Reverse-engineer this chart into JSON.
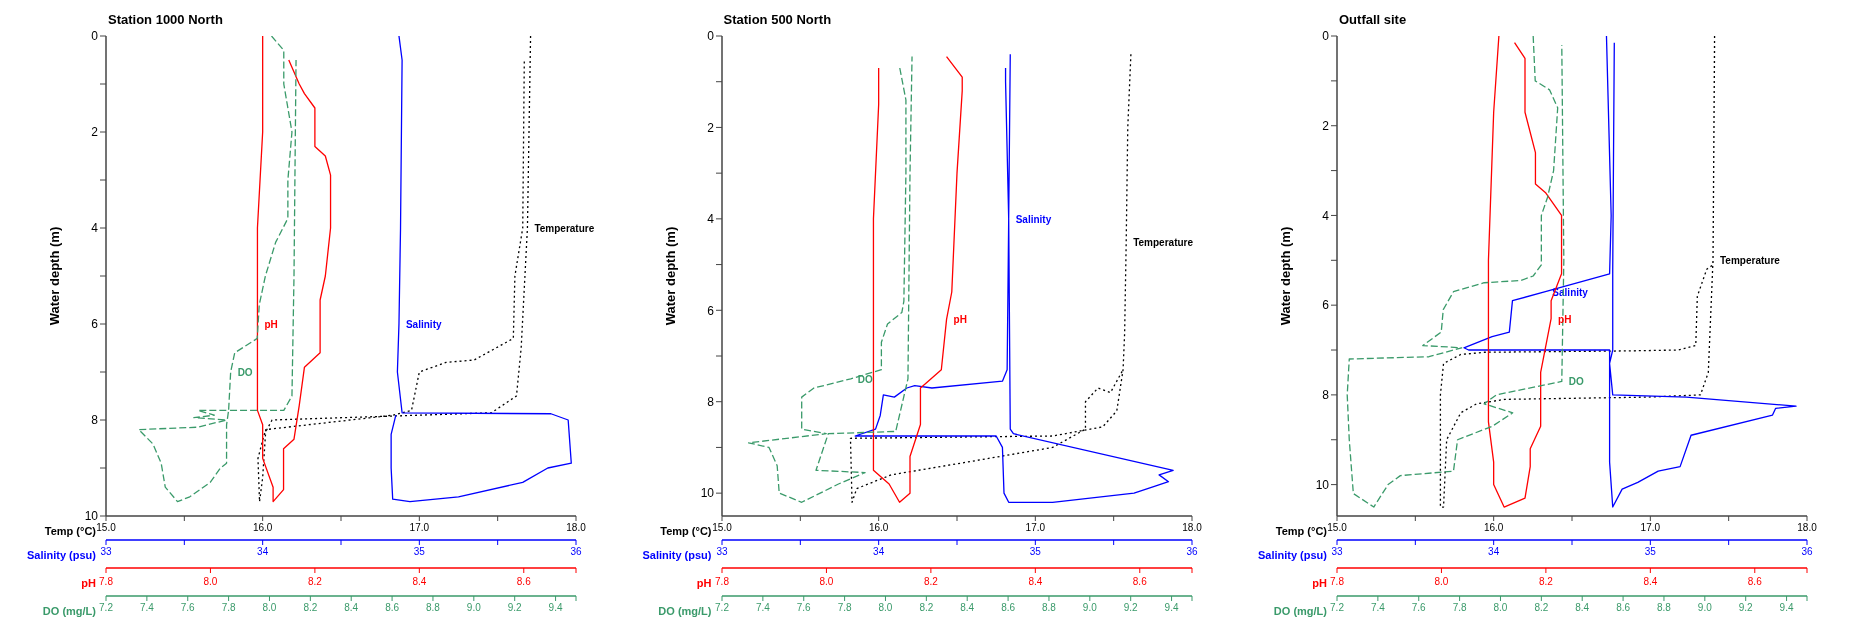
{
  "chart_data": [
    {
      "type": "line",
      "title": "Station 1000 North",
      "ylabel": "Water depth (m)",
      "xlabel": "Temp (°C)",
      "x2label": "Salinity (psu)",
      "xlim": [
        15,
        18
      ],
      "xticks": [
        {
          "value": 15,
          "label": "15.0"
        },
        {
          "value": 15.5,
          "label": null
        },
        {
          "value": 16,
          "label": "16.0"
        },
        {
          "value": 16.5,
          "label": null
        },
        {
          "value": 17,
          "label": "17.0"
        },
        {
          "value": 17.5,
          "label": null
        },
        {
          "value": 18,
          "label": "18.0"
        }
      ],
      "x2lim": [
        33,
        36
      ],
      "x2ticks": [
        33,
        {
          "value": 33.5,
          "label": null
        },
        34,
        {
          "value": 34.5,
          "label": null
        },
        35,
        {
          "value": 35.5,
          "label": null
        },
        36
      ],
      "ylim": [
        10,
        0
      ],
      "yticks": [
        0,
        {
          "value": 1,
          "label": null
        },
        2,
        {
          "value": 3,
          "label": null
        },
        4,
        {
          "value": 5,
          "label": null
        },
        6,
        {
          "value": 7,
          "label": null
        },
        8,
        {
          "value": 9,
          "label": null
        },
        10
      ],
      "series": [
        {
          "name": "Temperature",
          "color": "#000000",
          "line_style": "dotted",
          "x": [
            17.71,
            17.69,
            17.65,
            17.62,
            17.46,
            16.06,
            16.01,
            15.97,
            15.98,
            16.0,
            16.02,
            16.83,
            16.95,
            17.0,
            17.17,
            17.35,
            17.6,
            17.61,
            17.66,
            17.67
          ],
          "values": [
            0,
            4,
            6.5,
            7.5,
            7.85,
            8.0,
            8.3,
            8.8,
            9.7,
            9.2,
            8.2,
            7.9,
            7.8,
            7.0,
            6.8,
            6.75,
            6.3,
            5.0,
            4.0,
            0.5
          ]
        },
        {
          "name": "Salinity",
          "color": "#0000ff",
          "line_style": "solid",
          "axis": "x2",
          "x": [
            34.87,
            34.89,
            34.88,
            34.87,
            34.86,
            34.89,
            35.84,
            35.95,
            35.97,
            35.82,
            35.66,
            35.25,
            34.94,
            34.83,
            34.82,
            34.82,
            34.85
          ],
          "values": [
            0,
            0.5,
            4,
            6,
            7,
            7.85,
            7.87,
            8.0,
            8.9,
            9.0,
            9.3,
            9.6,
            9.7,
            9.65,
            9.0,
            8.3,
            7.9
          ]
        }
      ]
    },
    {
      "type": "line",
      "xlabel": "pH",
      "x2label": "DO (mg/L)",
      "tick_labels": "x",
      "xlim": [
        7.8,
        8.7
      ],
      "xticks": [
        7.8,
        {
          "value": 8,
          "label": "8.0"
        },
        8.2,
        8.4,
        8.6,
        {
          "value": 8.7,
          "label": null
        }
      ],
      "x2lim": [
        7.2,
        9.5
      ],
      "x2ticks": [
        7.2,
        7.4,
        7.6,
        7.8,
        {
          "value": 8,
          "label": "8.0"
        },
        8.2,
        8.4,
        8.6,
        8.8,
        {
          "value": 9,
          "label": "9.0"
        },
        9.2,
        9.4,
        {
          "value": 9.5,
          "label": null
        }
      ],
      "ylim": [
        10,
        0
      ],
      "series": [
        {
          "name": "pH",
          "color": "#ff0000",
          "line_style": "solid",
          "x": [
            8.1,
            8.1,
            8.09,
            8.09,
            8.09,
            8.1,
            8.1,
            8.12,
            8.12,
            8.14,
            8.14,
            8.16,
            8.17,
            8.18,
            8.21,
            8.21,
            8.22,
            8.23,
            8.23,
            8.22,
            8.2,
            8.2,
            8.18,
            8.17,
            8.15
          ],
          "values": [
            0,
            2,
            4,
            6,
            7.8,
            8.1,
            8.8,
            9.4,
            9.7,
            9.45,
            8.6,
            8.4,
            7.7,
            6.9,
            6.6,
            5.5,
            5.0,
            4.0,
            2.9,
            2.5,
            2.3,
            1.5,
            1.2,
            1.0,
            0.5
          ]
        },
        {
          "name": "DO",
          "color": "#3a9a6a",
          "line_style": "dashed",
          "axis": "x2",
          "x": [
            8.01,
            8.07,
            8.07,
            8.11,
            8.09,
            8.09,
            8.03,
            7.98,
            7.95,
            7.94,
            7.83,
            7.81,
            7.8,
            7.65,
            7.73,
            7.63,
            7.79,
            7.65,
            7.36,
            7.43,
            7.47,
            7.49,
            7.55,
            7.61,
            7.71,
            7.76,
            7.79,
            7.79,
            7.8,
            8.07,
            8.11,
            8.12,
            8.13
          ],
          "values": [
            0,
            0.3,
            1.0,
            2.0,
            3.0,
            3.8,
            4.3,
            5.0,
            5.6,
            6.3,
            6.6,
            7.0,
            7.8,
            7.8,
            7.9,
            7.95,
            8.0,
            8.15,
            8.2,
            8.5,
            8.9,
            9.4,
            9.7,
            9.6,
            9.3,
            9.0,
            8.9,
            8.1,
            7.8,
            7.8,
            7.5,
            5.0,
            0.5
          ]
        }
      ]
    },
    {
      "type": "line",
      "title": "Station 500 North",
      "ylabel": "Water depth (m)",
      "xlabel": "Temp (°C)",
      "x2label": "Salinity (psu)",
      "xlim": [
        15,
        18
      ],
      "xticks": [
        {
          "value": 15,
          "label": "15.0"
        },
        {
          "value": 15.5,
          "label": null
        },
        {
          "value": 16,
          "label": "16.0"
        },
        {
          "value": 16.5,
          "label": null
        },
        {
          "value": 17,
          "label": "17.0"
        },
        {
          "value": 17.5,
          "label": null
        },
        {
          "value": 18,
          "label": "18.0"
        }
      ],
      "x2lim": [
        33,
        36
      ],
      "x2ticks": [
        33,
        {
          "value": 33.5,
          "label": null
        },
        34,
        {
          "value": 34.5,
          "label": null
        },
        35,
        {
          "value": 35.5,
          "label": null
        },
        36
      ],
      "ylim": [
        10.5,
        0
      ],
      "yticks": [
        0,
        {
          "value": 1,
          "label": null
        },
        2,
        {
          "value": 3,
          "label": null
        },
        4,
        {
          "value": 5,
          "label": null
        },
        6,
        {
          "value": 7,
          "label": null
        },
        8,
        {
          "value": 9,
          "label": null
        },
        10
      ],
      "series": [
        {
          "name": "Temperature",
          "color": "#000000",
          "line_style": "dotted",
          "x": [
            17.61,
            17.59,
            17.58,
            17.57,
            17.56,
            17.52,
            17.43,
            17.11,
            15.82,
            15.83,
            15.86,
            16.08,
            16.6,
            17.11,
            17.32,
            17.32,
            17.4,
            17.48,
            17.56
          ],
          "values": [
            0.4,
            2,
            4.5,
            6.5,
            7.3,
            8.2,
            8.55,
            8.75,
            8.8,
            10.2,
            9.9,
            9.6,
            9.3,
            9.0,
            8.6,
            8.0,
            7.7,
            7.8,
            7.3
          ]
        },
        {
          "name": "Salinity",
          "color": "#0000ff",
          "line_style": "solid",
          "axis": "x2",
          "x": [
            34.81,
            34.81,
            34.83,
            34.82,
            34.79,
            34.34,
            34.23,
            34.18,
            34.1,
            34.03,
            34.01,
            33.98,
            33.85,
            34.75,
            34.79,
            34.8,
            34.83,
            35.11,
            35.63,
            35.76,
            35.85,
            35.79,
            35.88,
            34.86,
            34.84,
            34.83,
            34.84
          ],
          "values": [
            0.7,
            1.0,
            4,
            7.3,
            7.55,
            7.7,
            7.65,
            7.7,
            7.9,
            7.85,
            8.3,
            8.6,
            8.75,
            8.75,
            9.0,
            10.0,
            10.2,
            10.2,
            10.0,
            9.85,
            9.75,
            9.6,
            9.5,
            8.7,
            8.6,
            4,
            0.4
          ]
        }
      ]
    },
    {
      "type": "line",
      "xlabel": "pH",
      "x2label": "DO (mg/L)",
      "tick_labels": "x",
      "xlim": [
        7.8,
        8.7
      ],
      "xticks": [
        7.8,
        {
          "value": 8,
          "label": "8.0"
        },
        8.2,
        8.4,
        8.6,
        {
          "value": 8.7,
          "label": null
        }
      ],
      "x2lim": [
        7.2,
        9.5
      ],
      "x2ticks": [
        7.2,
        7.4,
        7.6,
        7.8,
        {
          "value": 8,
          "label": "8.0"
        },
        8.2,
        8.4,
        8.6,
        8.8,
        {
          "value": 9,
          "label": "9.0"
        },
        9.2,
        9.4,
        {
          "value": 9.5,
          "label": null
        }
      ],
      "ylim": [
        10.5,
        0
      ],
      "series": [
        {
          "name": "pH",
          "color": "#ff0000",
          "line_style": "solid",
          "x": [
            8.1,
            8.1,
            8.09,
            8.09,
            8.09,
            8.12,
            8.14,
            8.16,
            8.16,
            8.18,
            8.18,
            8.19,
            8.22,
            8.23,
            8.24,
            8.25,
            8.26,
            8.26,
            8.23
          ],
          "values": [
            0.7,
            1.5,
            4,
            8.6,
            9.5,
            9.8,
            10.2,
            10.0,
            9.2,
            8.5,
            7.7,
            7.6,
            7.3,
            6.2,
            5.6,
            3.0,
            1.2,
            0.9,
            0.45
          ]
        },
        {
          "name": "DO",
          "color": "#3a9a6a",
          "line_style": "dashed",
          "axis": "x2",
          "x": [
            8.07,
            8.1,
            8.1,
            8.09,
            8.08,
            8.01,
            7.98,
            7.98,
            7.83,
            7.65,
            7.62,
            7.59,
            7.59,
            7.71,
            7.33,
            7.43,
            7.47,
            7.48,
            7.59,
            7.77,
            7.9,
            7.66,
            7.72,
            8.05,
            8.11,
            8.12,
            8.13
          ],
          "values": [
            0.7,
            1.4,
            3.0,
            5.8,
            6.05,
            6.3,
            6.7,
            7.3,
            7.5,
            7.7,
            7.8,
            7.9,
            8.6,
            8.7,
            8.9,
            9.0,
            9.4,
            10.0,
            10.2,
            9.8,
            9.55,
            9.5,
            8.7,
            8.65,
            7.5,
            3.0,
            0.45
          ]
        }
      ]
    },
    {
      "type": "line",
      "title": "Outfall site",
      "ylabel": "Water depth (m)",
      "xlabel": "Temp (°C)",
      "x2label": "Salinity (psu)",
      "xlim": [
        15,
        18
      ],
      "xticks": [
        {
          "value": 15,
          "label": "15.0"
        },
        {
          "value": 15.5,
          "label": null
        },
        {
          "value": 16,
          "label": "16.0"
        },
        {
          "value": 16.5,
          "label": null
        },
        {
          "value": 17,
          "label": "17.0"
        },
        {
          "value": 17.5,
          "label": null
        },
        {
          "value": 18,
          "label": "18.0"
        }
      ],
      "x2lim": [
        33,
        36
      ],
      "x2ticks": [
        33,
        {
          "value": 33.5,
          "label": null
        },
        34,
        {
          "value": 34.5,
          "label": null
        },
        35,
        {
          "value": 35.5,
          "label": null
        },
        36
      ],
      "ylim": [
        10.7,
        0
      ],
      "yticks": [
        0,
        {
          "value": 1,
          "label": null
        },
        2,
        {
          "value": 3,
          "label": null
        },
        4,
        {
          "value": 5,
          "label": null
        },
        6,
        {
          "value": 7,
          "label": null
        },
        8,
        {
          "value": 9,
          "label": null
        },
        10
      ],
      "series": [
        {
          "name": "Temperature",
          "color": "#000000",
          "line_style": "dotted",
          "x": [
            17.41,
            17.4,
            17.37,
            17.32,
            16.98,
            16.07,
            15.89,
            15.79,
            15.7,
            15.68,
            15.66,
            15.66,
            15.68,
            15.79,
            15.94,
            16.85,
            17.18,
            17.29,
            17.3,
            17.36,
            17.4,
            17.41
          ],
          "values": [
            0,
            5.0,
            7.5,
            8.0,
            8.05,
            8.1,
            8.2,
            8.4,
            9.0,
            10.5,
            10.5,
            8.0,
            7.3,
            7.1,
            7.05,
            7.02,
            7.0,
            6.9,
            5.8,
            5.2,
            5.1,
            0.2
          ]
        },
        {
          "name": "Salinity",
          "color": "#0000ff",
          "line_style": "solid",
          "axis": "x2",
          "x": [
            34.77,
            34.76,
            34.76,
            34.74,
            34.76,
            35.23,
            35.93,
            35.8,
            35.78,
            35.26,
            35.19,
            35.05,
            34.92,
            34.82,
            34.76,
            34.74,
            34.74,
            33.84,
            33.81,
            33.99,
            34.1,
            34.12,
            34.33,
            34.74,
            34.75,
            34.72
          ],
          "values": [
            0.15,
            5.2,
            7.0,
            7.3,
            8.0,
            8.05,
            8.25,
            8.3,
            8.45,
            8.9,
            9.6,
            9.7,
            9.95,
            10.1,
            10.5,
            9.5,
            7.0,
            7.0,
            6.95,
            6.7,
            6.6,
            5.9,
            5.7,
            5.3,
            4.0,
            0
          ]
        }
      ]
    },
    {
      "type": "line",
      "xlabel": "pH",
      "x2label": "DO (mg/L)",
      "tick_labels": "x",
      "xlim": [
        7.8,
        8.7
      ],
      "xticks": [
        7.8,
        {
          "value": 8,
          "label": "8.0"
        },
        8.2,
        8.4,
        8.6,
        {
          "value": 8.7,
          "label": null
        }
      ],
      "x2lim": [
        7.2,
        9.5
      ],
      "x2ticks": [
        7.2,
        7.4,
        7.6,
        7.8,
        {
          "value": 8,
          "label": "8.0"
        },
        8.2,
        8.4,
        8.6,
        8.8,
        {
          "value": 9,
          "label": "9.0"
        },
        9.2,
        9.4,
        {
          "value": 9.5,
          "label": null
        }
      ],
      "ylim": [
        10.7,
        0
      ],
      "series": [
        {
          "name": "pH",
          "color": "#ff0000",
          "line_style": "solid",
          "x": [
            8.11,
            8.1,
            8.09,
            8.09,
            8.1,
            8.1,
            8.12,
            8.16,
            8.17,
            8.17,
            8.19,
            8.19,
            8.21,
            8.21,
            8.23,
            8.23,
            8.2,
            8.18,
            8.18,
            8.16,
            8.16,
            8.14
          ],
          "values": [
            0,
            1.7,
            5,
            8.6,
            9.5,
            10.0,
            10.5,
            10.3,
            9.6,
            9.2,
            8.7,
            7.5,
            6.3,
            5.9,
            5.3,
            4.0,
            3.5,
            3.3,
            2.6,
            1.7,
            0.5,
            0.15
          ]
        },
        {
          "name": "DO",
          "color": "#3a9a6a",
          "line_style": "dashed",
          "axis": "x2",
          "x": [
            8.16,
            8.17,
            8.24,
            8.28,
            8.26,
            8.23,
            8.2,
            8.2,
            8.16,
            8.1,
            7.92,
            7.77,
            7.72,
            7.71,
            7.62,
            7.81,
            7.65,
            7.26,
            7.25,
            7.26,
            7.28,
            7.38,
            7.45,
            7.51,
            7.77,
            7.79,
            7.96,
            8.06,
            7.92,
            7.98,
            8.3,
            8.31,
            8.3
          ],
          "values": [
            0,
            1.0,
            1.2,
            1.6,
            3.0,
            3.6,
            4.0,
            5.1,
            5.35,
            5.45,
            5.5,
            5.7,
            6.1,
            6.6,
            6.9,
            6.95,
            7.15,
            7.2,
            8.0,
            9.0,
            10.2,
            10.5,
            10.0,
            9.8,
            9.7,
            9.0,
            8.7,
            8.4,
            8.2,
            8.0,
            7.7,
            5.0,
            0.2
          ]
        }
      ]
    }
  ]
}
